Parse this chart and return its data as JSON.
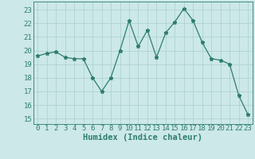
{
  "x": [
    0,
    1,
    2,
    3,
    4,
    5,
    6,
    7,
    8,
    9,
    10,
    11,
    12,
    13,
    14,
    15,
    16,
    17,
    18,
    19,
    20,
    21,
    22,
    23
  ],
  "y": [
    19.6,
    19.8,
    19.9,
    19.5,
    19.4,
    19.4,
    18.0,
    17.0,
    18.0,
    20.0,
    22.2,
    20.3,
    21.5,
    19.5,
    21.3,
    22.1,
    23.1,
    22.2,
    20.6,
    19.4,
    19.3,
    19.0,
    16.7,
    15.3
  ],
  "line_color": "#2e7d6e",
  "marker": "*",
  "bg_color": "#cce8e8",
  "grid_color": "#aacfcf",
  "xlabel": "Humidex (Indice chaleur)",
  "ylabel_ticks": [
    15,
    16,
    17,
    18,
    19,
    20,
    21,
    22,
    23
  ],
  "ylim": [
    14.6,
    23.6
  ],
  "xlim": [
    -0.5,
    23.5
  ],
  "tick_color": "#2e7d6e",
  "label_color": "#2e7d6e",
  "font_size": 6.5,
  "xlabel_fontsize": 7.5,
  "markersize": 3.5,
  "linewidth": 0.9
}
